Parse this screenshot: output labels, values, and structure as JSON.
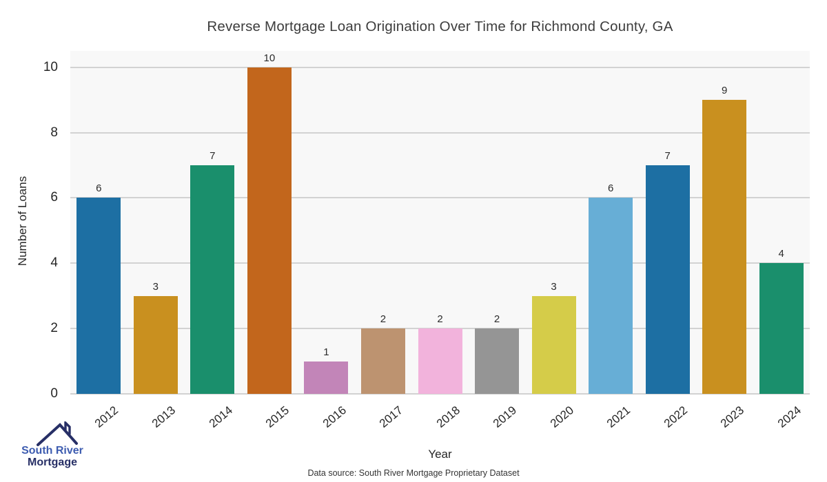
{
  "title": "Reverse Mortgage Loan Origination Over Time for Richmond County, GA",
  "ylabel": "Number of Loans",
  "xlabel": "Year",
  "source_note": "Data source: South River Mortgage Proprietary Dataset",
  "logo": {
    "line1": "South River",
    "line2": "Mortgage"
  },
  "colors": {
    "plot_background": "#f8f8f8",
    "gridline": "#d2d2d2",
    "title_text": "#3d3d3d",
    "tick_text": "#262626",
    "logo_blue": "#3d5cb0",
    "logo_navy": "#272f66"
  },
  "chart_data": {
    "type": "bar",
    "categories": [
      "2012",
      "2013",
      "2014",
      "2015",
      "2016",
      "2017",
      "2018",
      "2019",
      "2020",
      "2021",
      "2022",
      "2023",
      "2024"
    ],
    "values": [
      6,
      3,
      7,
      10,
      1,
      2,
      2,
      2,
      3,
      6,
      7,
      9,
      4
    ],
    "bar_colors": [
      "#1d6fa3",
      "#c9901f",
      "#1a8f6c",
      "#c2661c",
      "#c285b8",
      "#bd9370",
      "#f2b3dc",
      "#959595",
      "#d5cc49",
      "#67aed6",
      "#1d6fa3",
      "#c9901f",
      "#1a8f6c"
    ],
    "title": "Reverse Mortgage Loan Origination Over Time for Richmond County, GA",
    "xlabel": "Year",
    "ylabel": "Number of Loans",
    "yticks": [
      0,
      2,
      4,
      6,
      8,
      10
    ],
    "ylim": [
      0,
      10.5
    ],
    "grid": true,
    "legend": false,
    "bar_value_labels_shown": true
  }
}
